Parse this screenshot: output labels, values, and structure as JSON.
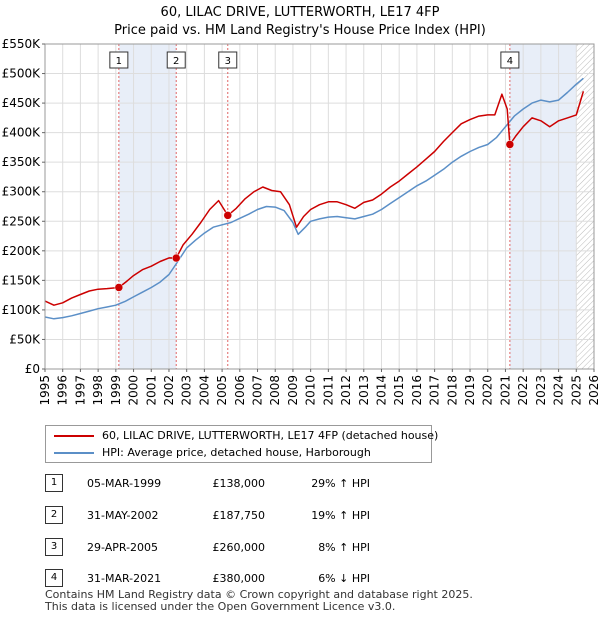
{
  "title_line1": "60, LILAC DRIVE, LUTTERWORTH, LE17 4FP",
  "title_line2": "Price paid vs. HM Land Registry's House Price Index (HPI)",
  "chart_data": {
    "type": "line",
    "title": "60, LILAC DRIVE, LUTTERWORTH, LE17 4FP — Price paid vs. HM Land Registry's House Price Index (HPI)",
    "xlabel": "",
    "ylabel": "",
    "xlim": [
      1995,
      2026
    ],
    "ylim": [
      0,
      550000
    ],
    "y_ticks": [
      0,
      50000,
      100000,
      150000,
      200000,
      250000,
      300000,
      350000,
      400000,
      450000,
      500000,
      550000
    ],
    "y_tick_labels": [
      "£0",
      "£50K",
      "£100K",
      "£150K",
      "£200K",
      "£250K",
      "£300K",
      "£350K",
      "£400K",
      "£450K",
      "£500K",
      "£550K"
    ],
    "x_ticks": [
      1995,
      1996,
      1997,
      1998,
      1999,
      2000,
      2001,
      2002,
      2003,
      2004,
      2005,
      2006,
      2007,
      2008,
      2009,
      2010,
      2011,
      2012,
      2013,
      2014,
      2015,
      2016,
      2017,
      2018,
      2019,
      2020,
      2021,
      2022,
      2023,
      2024,
      2025,
      2026
    ],
    "grid": true,
    "shaded_spans": [
      [
        1999.17,
        2002.41
      ],
      [
        2021.25,
        2025.0
      ]
    ],
    "hatched_from": 2025.0,
    "series": [
      {
        "name": "60, LILAC DRIVE, LUTTERWORTH, LE17 4FP (detached house)",
        "color": "#cc0000",
        "x": [
          1995.0,
          1995.5,
          1996.0,
          1996.5,
          1997.0,
          1997.5,
          1998.0,
          1998.5,
          1999.17,
          1999.6,
          2000.0,
          2000.5,
          2001.0,
          2001.5,
          2002.0,
          2002.41,
          2002.8,
          2003.3,
          2003.8,
          2004.3,
          2004.8,
          2005.32,
          2005.8,
          2006.3,
          2006.8,
          2007.3,
          2007.8,
          2008.3,
          2008.8,
          2009.2,
          2009.6,
          2010.0,
          2010.5,
          2011.0,
          2011.5,
          2012.0,
          2012.5,
          2013.0,
          2013.5,
          2014.0,
          2014.5,
          2015.0,
          2015.5,
          2016.0,
          2016.5,
          2017.0,
          2017.5,
          2018.0,
          2018.5,
          2019.0,
          2019.5,
          2020.0,
          2020.4,
          2020.8,
          2021.1,
          2021.25,
          2021.6,
          2022.0,
          2022.5,
          2023.0,
          2023.5,
          2024.0,
          2024.5,
          2025.0,
          2025.4
        ],
        "values": [
          115000,
          108000,
          112000,
          120000,
          126000,
          132000,
          135000,
          136000,
          138000,
          148000,
          158000,
          168000,
          174000,
          182000,
          188000,
          187750,
          210000,
          228000,
          248000,
          270000,
          285000,
          260000,
          272000,
          288000,
          300000,
          308000,
          302000,
          300000,
          278000,
          240000,
          258000,
          270000,
          278000,
          283000,
          283000,
          278000,
          272000,
          282000,
          286000,
          296000,
          308000,
          318000,
          330000,
          342000,
          355000,
          368000,
          385000,
          400000,
          415000,
          422000,
          428000,
          430000,
          430000,
          465000,
          440000,
          380000,
          395000,
          410000,
          425000,
          420000,
          410000,
          420000,
          425000,
          430000,
          470000
        ]
      },
      {
        "name": "HPI: Average price, detached house, Harborough",
        "color": "#5b8fc7",
        "x": [
          1995.0,
          1995.5,
          1996.0,
          1996.5,
          1997.0,
          1997.5,
          1998.0,
          1998.5,
          1999.0,
          1999.5,
          2000.0,
          2000.5,
          2001.0,
          2001.5,
          2002.0,
          2002.5,
          2003.0,
          2003.5,
          2004.0,
          2004.5,
          2005.0,
          2005.5,
          2006.0,
          2006.5,
          2007.0,
          2007.5,
          2008.0,
          2008.5,
          2009.0,
          2009.3,
          2009.7,
          2010.0,
          2010.5,
          2011.0,
          2011.5,
          2012.0,
          2012.5,
          2013.0,
          2013.5,
          2014.0,
          2014.5,
          2015.0,
          2015.5,
          2016.0,
          2016.5,
          2017.0,
          2017.5,
          2018.0,
          2018.5,
          2019.0,
          2019.5,
          2020.0,
          2020.5,
          2021.0,
          2021.5,
          2022.0,
          2022.5,
          2023.0,
          2023.5,
          2024.0,
          2024.5,
          2025.0,
          2025.4
        ],
        "values": [
          88000,
          85000,
          87000,
          90000,
          94000,
          98000,
          102000,
          105000,
          108000,
          114000,
          122000,
          130000,
          138000,
          147000,
          160000,
          182000,
          205000,
          218000,
          230000,
          240000,
          244000,
          248000,
          255000,
          262000,
          270000,
          275000,
          274000,
          268000,
          248000,
          228000,
          240000,
          250000,
          254000,
          257000,
          258000,
          256000,
          254000,
          258000,
          262000,
          270000,
          280000,
          290000,
          300000,
          310000,
          318000,
          328000,
          338000,
          350000,
          360000,
          368000,
          375000,
          380000,
          392000,
          410000,
          428000,
          440000,
          450000,
          455000,
          452000,
          455000,
          468000,
          482000,
          492000
        ]
      }
    ],
    "sale_markers": [
      {
        "label": "1",
        "x": 1999.17,
        "value": 138000
      },
      {
        "label": "2",
        "x": 2002.41,
        "value": 187750
      },
      {
        "label": "3",
        "x": 2005.32,
        "value": 260000
      },
      {
        "label": "4",
        "x": 2021.25,
        "value": 380000
      }
    ]
  },
  "legend": {
    "property_label": "60, LILAC DRIVE, LUTTERWORTH, LE17 4FP (detached house)",
    "hpi_label": "HPI: Average price, detached house, Harborough"
  },
  "sales": [
    {
      "num": "1",
      "date": "05-MAR-1999",
      "price": "£138,000",
      "hpi": "29% ↑ HPI"
    },
    {
      "num": "2",
      "date": "31-MAY-2002",
      "price": "£187,750",
      "hpi": "19% ↑ HPI"
    },
    {
      "num": "3",
      "date": "29-APR-2005",
      "price": "£260,000",
      "hpi": "8% ↑ HPI"
    },
    {
      "num": "4",
      "date": "31-MAR-2021",
      "price": "£380,000",
      "hpi": "6% ↓ HPI"
    }
  ],
  "footer": {
    "line1": "Contains HM Land Registry data © Crown copyright and database right 2025.",
    "line2": "This data is licensed under the Open Government Licence v3.0."
  }
}
